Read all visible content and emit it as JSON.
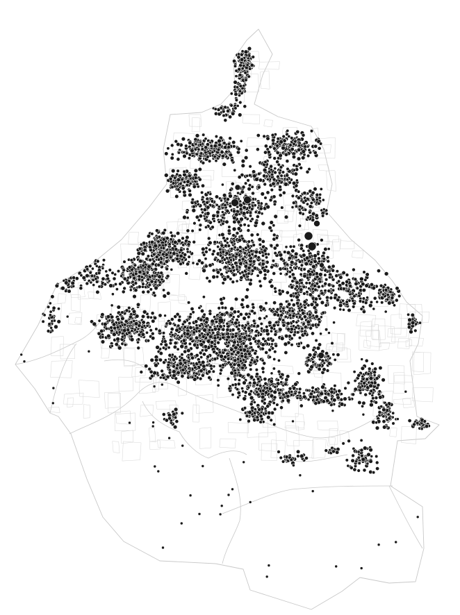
{
  "map": {
    "type": "dot-distribution map",
    "background_color": "#ffffff",
    "boundary_color": "#c8c8c8",
    "dot_color": "#1a1a1a",
    "dot_stroke_color": "#ffffff",
    "legend": "none",
    "title": "",
    "visible_text": ""
  }
}
